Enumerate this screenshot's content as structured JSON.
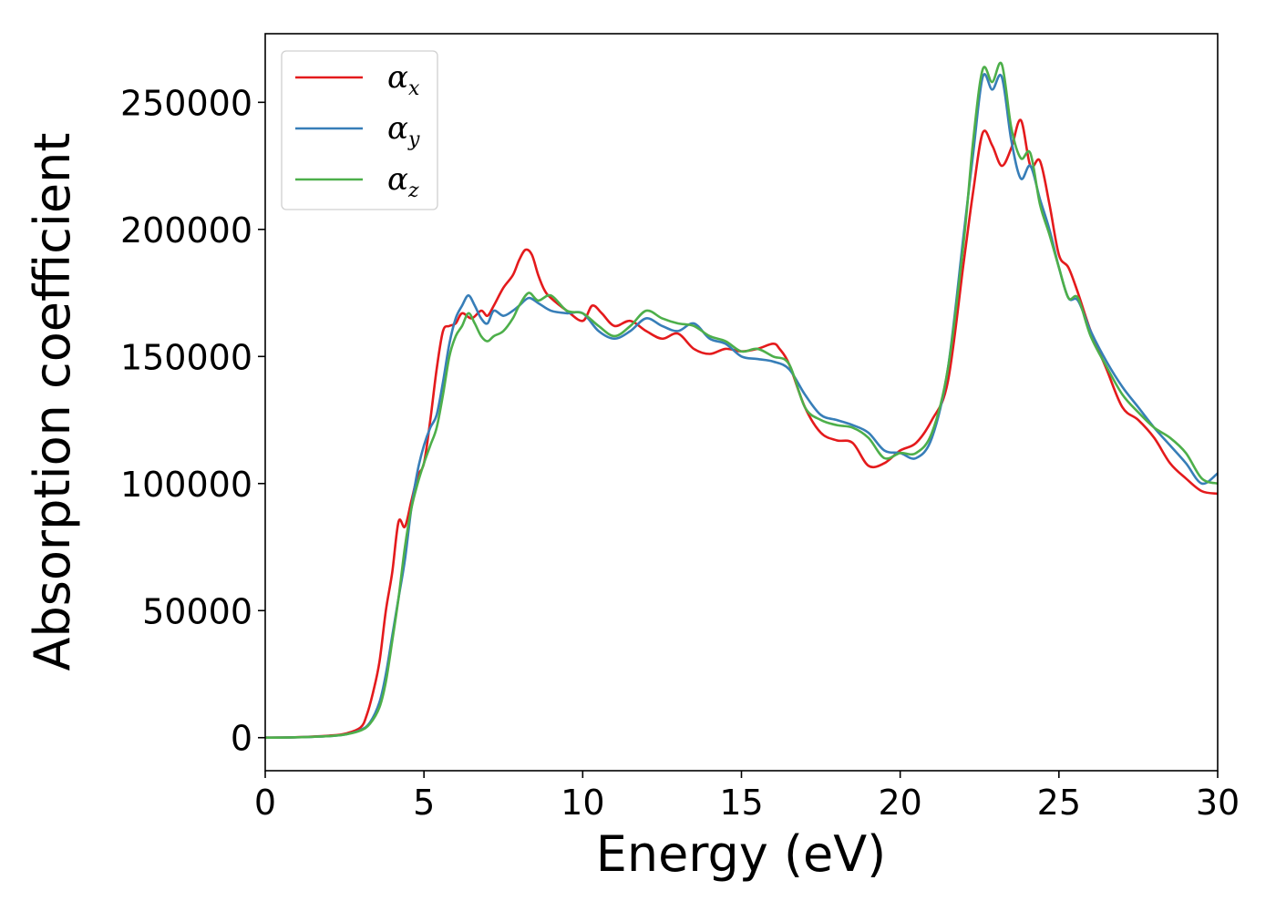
{
  "chart_data": {
    "type": "line",
    "title": "",
    "xlabel": "Energy (eV)",
    "ylabel": "Absorption coefficient",
    "xlim": [
      0,
      30
    ],
    "ylim": [
      -13000,
      277000
    ],
    "xticks": [
      0,
      5,
      10,
      15,
      20,
      25,
      30
    ],
    "yticks": [
      0,
      50000,
      100000,
      150000,
      200000,
      250000
    ],
    "grid": false,
    "legend_position": "top-left",
    "series": [
      {
        "name": "α",
        "subscript": "x",
        "color": "#e41a1c",
        "x": [
          0,
          1,
          2,
          2.5,
          3,
          3.2,
          3.4,
          3.6,
          3.8,
          4.0,
          4.2,
          4.4,
          4.6,
          4.8,
          5.0,
          5.2,
          5.4,
          5.6,
          5.8,
          6.0,
          6.2,
          6.5,
          6.8,
          7.0,
          7.2,
          7.5,
          7.8,
          8.0,
          8.2,
          8.4,
          8.6,
          8.8,
          9.0,
          9.5,
          10.0,
          10.3,
          10.6,
          11.0,
          11.5,
          12.0,
          12.5,
          13.0,
          13.5,
          14.0,
          14.5,
          15.0,
          15.5,
          16.0,
          16.2,
          16.5,
          17.0,
          17.5,
          18.0,
          18.5,
          19.0,
          19.5,
          20.0,
          20.5,
          21.0,
          21.5,
          22.0,
          22.3,
          22.6,
          22.9,
          23.2,
          23.5,
          23.8,
          24.1,
          24.4,
          24.7,
          25.0,
          25.3,
          25.6,
          26.0,
          26.5,
          27.0,
          27.5,
          28.0,
          28.5,
          29.0,
          29.5,
          30.0
        ],
        "values": [
          0,
          200,
          800,
          1500,
          4000,
          9000,
          18000,
          30000,
          50000,
          65000,
          85000,
          83000,
          93000,
          103000,
          108000,
          125000,
          145000,
          160000,
          162000,
          163000,
          167000,
          165000,
          168000,
          166000,
          170000,
          177000,
          182000,
          188000,
          192000,
          190000,
          182000,
          176000,
          173000,
          168000,
          164000,
          170000,
          167000,
          162000,
          164000,
          160000,
          157000,
          159000,
          153000,
          151000,
          153000,
          152000,
          153000,
          155000,
          153000,
          147000,
          130000,
          120000,
          117000,
          116000,
          107000,
          108000,
          113000,
          116000,
          125000,
          140000,
          187000,
          215000,
          238000,
          233000,
          225000,
          232000,
          243000,
          225000,
          227000,
          210000,
          190000,
          185000,
          175000,
          160000,
          145000,
          130000,
          125000,
          118000,
          108000,
          102000,
          97000,
          96000
        ]
      },
      {
        "name": "α",
        "subscript": "y",
        "color": "#377eb8",
        "x": [
          0,
          1,
          2,
          2.5,
          3,
          3.3,
          3.6,
          3.8,
          4.0,
          4.2,
          4.4,
          4.6,
          4.8,
          5.0,
          5.2,
          5.4,
          5.6,
          5.8,
          6.0,
          6.2,
          6.4,
          6.6,
          6.8,
          7.0,
          7.2,
          7.5,
          7.8,
          8.0,
          8.3,
          8.6,
          9.0,
          9.5,
          10.0,
          10.5,
          11.0,
          11.5,
          12.0,
          12.5,
          13.0,
          13.5,
          14.0,
          14.5,
          15.0,
          15.5,
          16.0,
          16.5,
          17.0,
          17.5,
          18.0,
          18.5,
          19.0,
          19.5,
          20.0,
          20.5,
          21.0,
          21.5,
          22.0,
          22.3,
          22.6,
          22.9,
          23.2,
          23.5,
          23.8,
          24.1,
          24.4,
          24.7,
          25.0,
          25.3,
          25.6,
          26.0,
          26.5,
          27.0,
          27.5,
          28.0,
          28.5,
          29.0,
          29.5,
          30.0
        ],
        "values": [
          0,
          150,
          600,
          1200,
          3000,
          6000,
          14000,
          25000,
          40000,
          55000,
          70000,
          90000,
          105000,
          115000,
          122000,
          127000,
          140000,
          155000,
          165000,
          170000,
          174000,
          170000,
          165000,
          163000,
          168000,
          166000,
          168000,
          170000,
          173000,
          171000,
          168000,
          167000,
          167000,
          160000,
          157000,
          160000,
          165000,
          162000,
          160000,
          163000,
          157000,
          155000,
          150000,
          149000,
          148000,
          145000,
          135000,
          127000,
          125000,
          123000,
          120000,
          113000,
          112000,
          110000,
          118000,
          145000,
          198000,
          230000,
          260000,
          255000,
          260000,
          235000,
          220000,
          225000,
          212000,
          200000,
          185000,
          173000,
          172000,
          160000,
          148000,
          138000,
          130000,
          122000,
          115000,
          108000,
          100000,
          104000
        ]
      },
      {
        "name": "α",
        "subscript": "z",
        "color": "#4daf4a",
        "x": [
          0,
          1,
          2,
          2.5,
          3,
          3.3,
          3.6,
          3.8,
          4.0,
          4.2,
          4.4,
          4.6,
          4.8,
          5.0,
          5.2,
          5.4,
          5.6,
          5.8,
          6.0,
          6.2,
          6.4,
          6.6,
          6.8,
          7.0,
          7.2,
          7.5,
          7.8,
          8.0,
          8.3,
          8.6,
          9.0,
          9.5,
          10.0,
          10.5,
          11.0,
          11.5,
          12.0,
          12.5,
          13.0,
          13.5,
          14.0,
          14.5,
          15.0,
          15.5,
          16.0,
          16.5,
          17.0,
          17.5,
          18.0,
          18.5,
          19.0,
          19.5,
          20.0,
          20.5,
          21.0,
          21.5,
          22.0,
          22.3,
          22.6,
          22.9,
          23.2,
          23.5,
          23.8,
          24.1,
          24.4,
          24.7,
          25.0,
          25.3,
          25.6,
          26.0,
          26.5,
          27.0,
          27.5,
          28.0,
          28.5,
          29.0,
          29.5,
          30.0
        ],
        "values": [
          0,
          150,
          600,
          1200,
          2800,
          5500,
          12000,
          22000,
          38000,
          55000,
          75000,
          90000,
          100000,
          108000,
          115000,
          122000,
          135000,
          150000,
          158000,
          162000,
          167000,
          163000,
          158000,
          156000,
          158000,
          160000,
          165000,
          170000,
          175000,
          172000,
          174000,
          168000,
          167000,
          162000,
          158000,
          162000,
          168000,
          165000,
          163000,
          162000,
          158000,
          156000,
          152000,
          153000,
          150000,
          147000,
          130000,
          125000,
          123000,
          122000,
          118000,
          110000,
          112000,
          112000,
          120000,
          145000,
          195000,
          235000,
          263000,
          258000,
          265000,
          240000,
          228000,
          230000,
          210000,
          198000,
          185000,
          173000,
          173000,
          158000,
          146000,
          135000,
          128000,
          122000,
          118000,
          112000,
          102000,
          100000
        ]
      }
    ]
  }
}
